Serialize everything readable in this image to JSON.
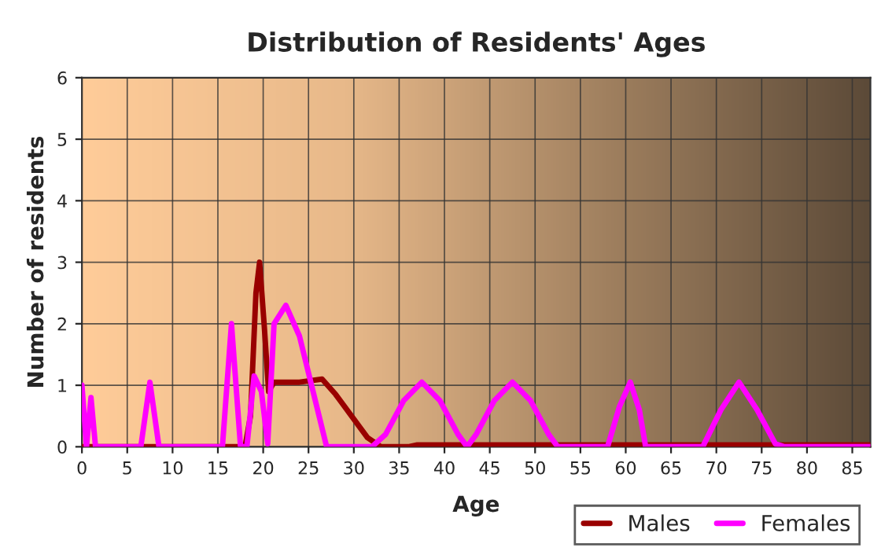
{
  "chart_data": {
    "type": "line",
    "title": "Distribution of Residents' Ages",
    "xlabel": "Age",
    "ylabel": "Number of residents",
    "xlim": [
      0,
      87
    ],
    "xticks": [
      0,
      5,
      10,
      15,
      20,
      25,
      30,
      35,
      40,
      45,
      50,
      55,
      60,
      65,
      70,
      75,
      80,
      85
    ],
    "ylim": [
      0,
      6
    ],
    "yticks": [
      0,
      1,
      2,
      3,
      4,
      5,
      6
    ],
    "grid": true,
    "legend": "bottom right",
    "line_style": "solid",
    "marker": "none",
    "series": [
      {
        "name": "Males",
        "color": "#990000",
        "x": [
          0,
          18,
          18.6,
          19.2,
          19.6,
          20.1,
          20.6,
          21.2,
          24,
          26.5,
          28,
          30,
          31.5,
          33,
          36,
          37,
          87
        ],
        "values": [
          0,
          0,
          0.5,
          2.5,
          3,
          2,
          0.9,
          1.05,
          1.05,
          1.1,
          0.85,
          0.45,
          0.15,
          0,
          0,
          0.03,
          0.03
        ]
      },
      {
        "name": "Females",
        "color": "#ff00ff",
        "x": [
          0,
          0.5,
          1,
          1.5,
          6.5,
          7.5,
          8.5,
          15.5,
          16.5,
          17.5,
          18.2,
          19,
          19.8,
          20.5,
          21.2,
          22.5,
          24,
          25.5,
          27,
          32,
          33.5,
          35.5,
          37.5,
          39.5,
          41.5,
          42.5,
          43.5,
          45.5,
          47.5,
          49.5,
          51.5,
          52.5,
          58,
          59.3,
          60.5,
          61.5,
          62.2,
          68.5,
          70.5,
          72.5,
          74.5,
          76.5,
          77.5,
          87
        ],
        "values": [
          1,
          0,
          0.8,
          0,
          0,
          1.05,
          0,
          0,
          2,
          0,
          0,
          1.15,
          0.9,
          0.05,
          2,
          2.3,
          1.8,
          0.9,
          0,
          0,
          0.2,
          0.75,
          1.05,
          0.75,
          0.2,
          0,
          0.2,
          0.75,
          1.05,
          0.75,
          0.2,
          0,
          0,
          0.65,
          1.05,
          0.6,
          0,
          0,
          0.6,
          1.05,
          0.6,
          0.05,
          0,
          0
        ]
      }
    ]
  }
}
